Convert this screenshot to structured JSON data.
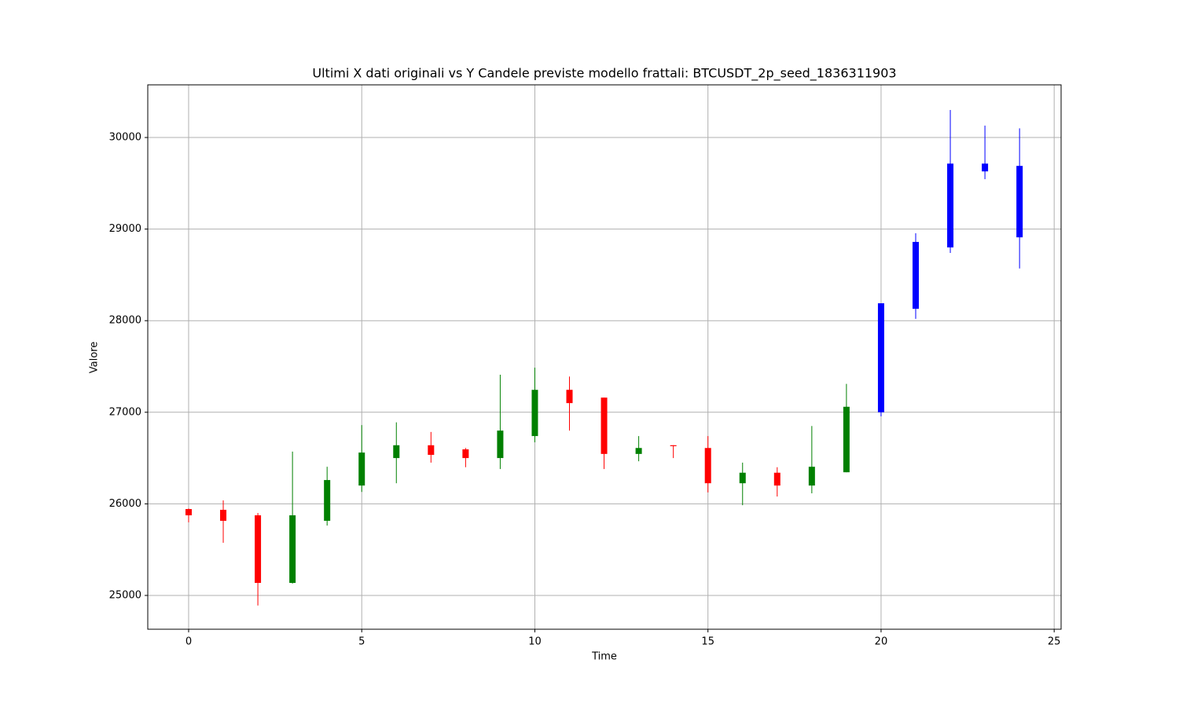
{
  "chart_data": {
    "type": "candlestick",
    "title": "Ultimi X dati originali vs Y Candele previste modello frattali: BTCUSDT_2p_seed_1836311903",
    "x_label": "Time",
    "y_label": "Valore",
    "series": [
      {
        "up_color": "green",
        "down_color": "red",
        "x": [
          0,
          1,
          2,
          3,
          4,
          5,
          6,
          7,
          8,
          9,
          10,
          11,
          12,
          13,
          14,
          15,
          16,
          17,
          18,
          19
        ],
        "open": [
          25943,
          25935,
          25875,
          25137,
          25815,
          26200,
          26500,
          26640,
          26595,
          26500,
          26740,
          27245,
          27160,
          26545,
          26640,
          26610,
          26225,
          26340,
          26200,
          26345
        ],
        "high": [
          25950,
          26038,
          25900,
          26570,
          26405,
          26860,
          26890,
          26785,
          26610,
          27410,
          27487,
          27390,
          27160,
          26740,
          26640,
          26740,
          26450,
          26400,
          26850,
          27310
        ],
        "low": [
          25798,
          25575,
          24890,
          25130,
          25763,
          26130,
          26225,
          26450,
          26400,
          26380,
          26672,
          26800,
          26380,
          26465,
          26500,
          26125,
          25985,
          26080,
          26115,
          26345
        ],
        "close": [
          25875,
          25815,
          25137,
          25875,
          26260,
          26560,
          26640,
          26535,
          26500,
          26800,
          27245,
          27100,
          26545,
          26610,
          26630,
          26225,
          26340,
          26200,
          26405,
          27060
        ]
      },
      {
        "color": "blue",
        "x": [
          20,
          21,
          22,
          23,
          24
        ],
        "open": [
          27000,
          28130,
          28800,
          29630,
          29690
        ],
        "high": [
          28190,
          28955,
          30300,
          30130,
          30100
        ],
        "low": [
          26955,
          28020,
          28740,
          29545,
          28570
        ],
        "close": [
          28190,
          28860,
          29715,
          29715,
          28910
        ]
      }
    ],
    "xlim": [
      -1.18,
      25.2
    ],
    "ylim": [
      24631,
      30575
    ],
    "xticks": [
      0,
      5,
      10,
      15,
      20,
      25
    ],
    "yticks": [
      25000,
      26000,
      27000,
      28000,
      29000,
      30000
    ],
    "grid": true
  }
}
